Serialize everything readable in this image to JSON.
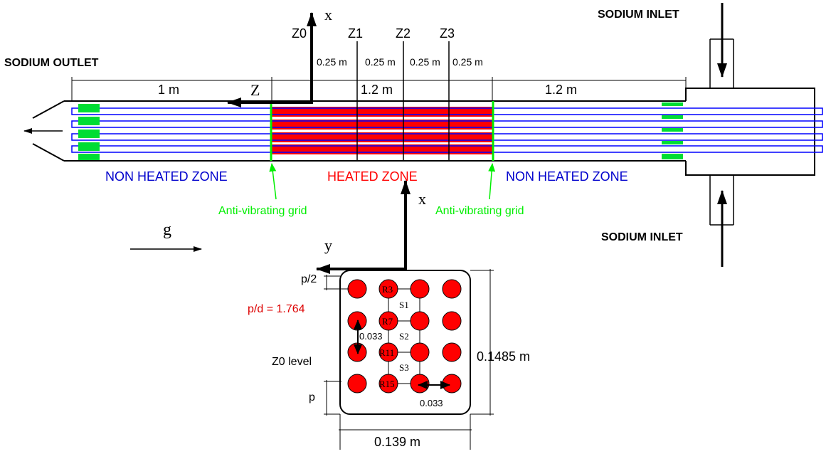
{
  "labels": {
    "sodium_outlet": "SODIUM OUTLET",
    "sodium_inlet_top": "SODIUM INLET",
    "sodium_inlet_bottom": "SODIUM INLET",
    "non_heated_zone_left": "NON HEATED ZONE",
    "heated_zone": "HEATED ZONE",
    "non_heated_zone_right": "NON HEATED ZONE",
    "anti_vibrating_grid_left": "Anti-vibrating grid",
    "anti_vibrating_grid_right": "Anti-vibrating grid",
    "gravity": "g",
    "pd_ratio": "p/d = 1.764",
    "z0_level": "Z0 level"
  },
  "axes": {
    "top_x": "x",
    "top_z": "Z",
    "cross_x": "x",
    "cross_y": "y"
  },
  "levels": [
    "Z0",
    "Z1",
    "Z2",
    "Z3"
  ],
  "level_spacings": [
    "0.25 m",
    "0.25 m",
    "0.25 m",
    "0.25 m"
  ],
  "segment_lengths": {
    "outlet_section": "1 m",
    "heated_section": "1.2 m",
    "inlet_section": "1.2 m"
  },
  "cross_section": {
    "rods": [
      "R3",
      "R7",
      "R11",
      "R15"
    ],
    "subchannels": [
      "S1",
      "S2",
      "S3"
    ],
    "gap_vertical": "0.033",
    "gap_horizontal": "0.033",
    "height": "0.1485 m",
    "width": "0.139 m",
    "half_pitch": "p/2",
    "pitch": "p"
  },
  "colors": {
    "heated": "#ff0000",
    "non_heated_text": "#0000cc",
    "pin_outline": "#0000ff",
    "grid": "#00ee00",
    "heated_text": "#ff0000",
    "pd_text": "#dd0000",
    "line": "#000000"
  }
}
